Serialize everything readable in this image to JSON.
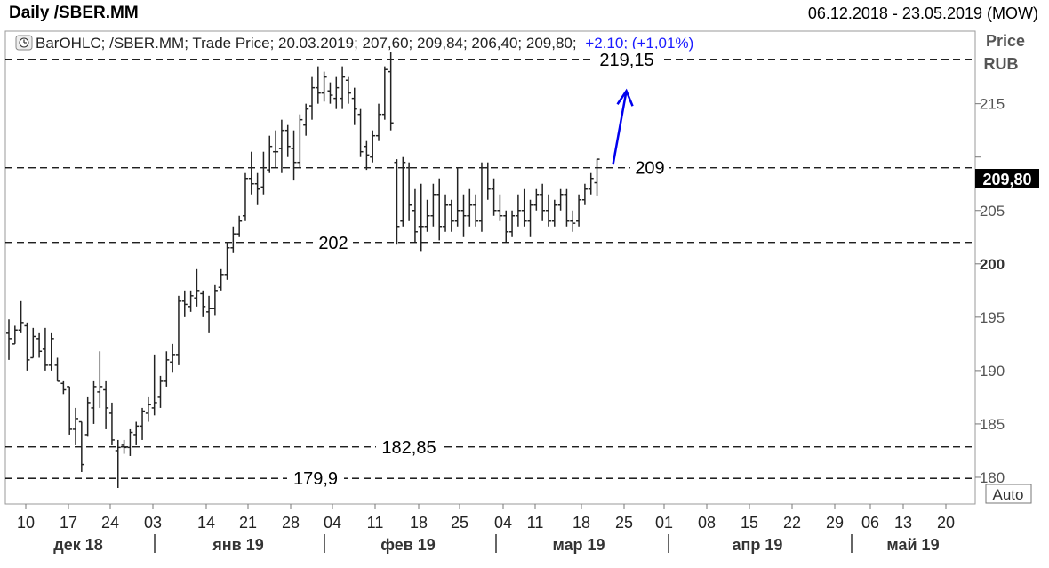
{
  "header": {
    "title": "Daily /SBER.MM",
    "date_range": "06.12.2018 - 23.05.2019 (MOW)"
  },
  "legend": {
    "prefix": "BarOHLC; /SBER.MM; Trade Price; 20.03.2019; 207,60; 209,84; 206,40; 209,80;",
    "change": "+2,10; (+1,01%)"
  },
  "price_axis": {
    "title_line1": "Price",
    "title_line2": "RUB",
    "last_price_label": "209,80",
    "auto_label": "Auto"
  },
  "colors": {
    "bars": "#222222",
    "arrow": "#0000ee",
    "change_text": "#1a1aff",
    "last_price_bg": "#000000"
  },
  "chart_data": {
    "type": "ohlc",
    "ylim": [
      177.5,
      221.8
    ],
    "y_ticks": [
      180,
      185,
      190,
      195,
      200,
      205,
      210,
      215
    ],
    "y_tick_labels": [
      "180",
      "185",
      "190",
      "195",
      "200",
      "205",
      "",
      "215"
    ],
    "x_day_labels": [
      "10",
      "17",
      "24",
      "03",
      "14",
      "21",
      "28",
      "04",
      "11",
      "18",
      "25",
      "04",
      "11",
      "18",
      "25",
      "01",
      "08",
      "15",
      "22",
      "29",
      "06",
      "13",
      "20"
    ],
    "x_month_labels": [
      "дек 18",
      "янв 19",
      "фев 19",
      "мар 19",
      "апр 19",
      "май 19"
    ],
    "levels": [
      {
        "value": 219.15,
        "label": "219,15"
      },
      {
        "value": 209.0,
        "label": "209"
      },
      {
        "value": 202.0,
        "label": "202"
      },
      {
        "value": 182.85,
        "label": "182,85"
      },
      {
        "value": 179.9,
        "label": "179,9"
      }
    ],
    "arrow": {
      "from": 209.3,
      "to": 216.2
    },
    "bars": [
      {
        "o": 193.5,
        "h": 194.8,
        "l": 191.0,
        "c": 193.0
      },
      {
        "o": 192.5,
        "h": 194.2,
        "l": 192.5,
        "c": 193.8
      },
      {
        "o": 193.8,
        "h": 196.5,
        "l": 193.5,
        "c": 194.5
      },
      {
        "o": 194.2,
        "h": 194.5,
        "l": 190.0,
        "c": 191.0
      },
      {
        "o": 191.2,
        "h": 194.0,
        "l": 191.2,
        "c": 193.2
      },
      {
        "o": 193.0,
        "h": 193.5,
        "l": 191.2,
        "c": 191.8
      },
      {
        "o": 192.0,
        "h": 194.0,
        "l": 190.0,
        "c": 190.5
      },
      {
        "o": 190.5,
        "h": 193.5,
        "l": 190.0,
        "c": 193.0
      },
      {
        "o": 190.5,
        "h": 191.2,
        "l": 189.0,
        "c": 189.0
      },
      {
        "o": 188.8,
        "h": 189.0,
        "l": 187.8,
        "c": 188.2
      },
      {
        "o": 188.5,
        "h": 188.5,
        "l": 184.0,
        "c": 184.5
      },
      {
        "o": 184.5,
        "h": 186.5,
        "l": 183.0,
        "c": 185.5
      },
      {
        "o": 185.2,
        "h": 185.2,
        "l": 180.5,
        "c": 181.2
      },
      {
        "o": 184.0,
        "h": 187.5,
        "l": 183.8,
        "c": 187.0
      },
      {
        "o": 186.5,
        "h": 189.0,
        "l": 185.0,
        "c": 188.5
      },
      {
        "o": 188.0,
        "h": 191.8,
        "l": 186.5,
        "c": 188.5
      },
      {
        "o": 188.2,
        "h": 189.0,
        "l": 184.5,
        "c": 186.5
      },
      {
        "o": 186.0,
        "h": 187.0,
        "l": 183.0,
        "c": 183.5
      },
      {
        "o": 182.5,
        "h": 183.5,
        "l": 179.0,
        "c": 182.8
      },
      {
        "o": 183.0,
        "h": 183.5,
        "l": 182.2,
        "c": 182.8
      },
      {
        "o": 182.8,
        "h": 184.5,
        "l": 182.0,
        "c": 184.2
      },
      {
        "o": 184.0,
        "h": 185.2,
        "l": 183.0,
        "c": 184.8
      },
      {
        "o": 184.8,
        "h": 186.5,
        "l": 183.5,
        "c": 186.2
      },
      {
        "o": 186.0,
        "h": 187.5,
        "l": 185.2,
        "c": 186.8
      },
      {
        "o": 186.5,
        "h": 191.5,
        "l": 185.8,
        "c": 187.0
      },
      {
        "o": 187.5,
        "h": 189.5,
        "l": 186.5,
        "c": 189.0
      },
      {
        "o": 189.0,
        "h": 191.8,
        "l": 188.5,
        "c": 191.0
      },
      {
        "o": 190.8,
        "h": 192.5,
        "l": 189.8,
        "c": 191.5
      },
      {
        "o": 191.5,
        "h": 197.0,
        "l": 190.5,
        "c": 196.5
      },
      {
        "o": 196.5,
        "h": 197.5,
        "l": 195.0,
        "c": 196.2
      },
      {
        "o": 196.0,
        "h": 197.5,
        "l": 195.5,
        "c": 197.0
      },
      {
        "o": 196.8,
        "h": 199.5,
        "l": 196.0,
        "c": 197.5
      },
      {
        "o": 197.2,
        "h": 197.5,
        "l": 195.0,
        "c": 196.0
      },
      {
        "o": 195.5,
        "h": 197.0,
        "l": 193.5,
        "c": 195.8
      },
      {
        "o": 195.8,
        "h": 198.0,
        "l": 195.2,
        "c": 197.5
      },
      {
        "o": 197.8,
        "h": 199.5,
        "l": 197.5,
        "c": 199.0
      },
      {
        "o": 199.0,
        "h": 202.0,
        "l": 198.5,
        "c": 201.5
      },
      {
        "o": 201.5,
        "h": 203.5,
        "l": 201.0,
        "c": 202.8
      },
      {
        "o": 202.8,
        "h": 204.5,
        "l": 202.5,
        "c": 204.0
      },
      {
        "o": 204.5,
        "h": 208.5,
        "l": 204.0,
        "c": 208.0
      },
      {
        "o": 208.0,
        "h": 210.5,
        "l": 206.5,
        "c": 207.5
      },
      {
        "o": 207.5,
        "h": 208.5,
        "l": 205.5,
        "c": 207.0
      },
      {
        "o": 207.2,
        "h": 210.5,
        "l": 206.5,
        "c": 209.0
      },
      {
        "o": 208.8,
        "h": 212.0,
        "l": 208.5,
        "c": 211.0
      },
      {
        "o": 210.5,
        "h": 212.5,
        "l": 209.0,
        "c": 210.5
      },
      {
        "o": 210.8,
        "h": 213.5,
        "l": 208.5,
        "c": 212.5
      },
      {
        "o": 212.5,
        "h": 213.0,
        "l": 210.0,
        "c": 211.0
      },
      {
        "o": 210.8,
        "h": 212.5,
        "l": 207.8,
        "c": 209.5
      },
      {
        "o": 209.5,
        "h": 214.0,
        "l": 209.0,
        "c": 213.5
      },
      {
        "o": 213.0,
        "h": 215.0,
        "l": 212.0,
        "c": 214.5
      },
      {
        "o": 214.8,
        "h": 217.5,
        "l": 213.5,
        "c": 216.5
      },
      {
        "o": 216.5,
        "h": 218.5,
        "l": 215.0,
        "c": 216.0
      },
      {
        "o": 216.0,
        "h": 218.0,
        "l": 215.2,
        "c": 217.5
      },
      {
        "o": 216.2,
        "h": 217.0,
        "l": 215.0,
        "c": 215.8
      },
      {
        "o": 215.5,
        "h": 217.5,
        "l": 214.5,
        "c": 216.5
      },
      {
        "o": 215.5,
        "h": 218.5,
        "l": 214.5,
        "c": 217.5
      },
      {
        "o": 217.2,
        "h": 217.5,
        "l": 215.0,
        "c": 216.0
      },
      {
        "o": 215.5,
        "h": 216.5,
        "l": 213.0,
        "c": 214.5
      },
      {
        "o": 214.0,
        "h": 214.5,
        "l": 210.0,
        "c": 210.5
      },
      {
        "o": 211.0,
        "h": 211.5,
        "l": 208.8,
        "c": 210.2
      },
      {
        "o": 210.0,
        "h": 212.5,
        "l": 209.5,
        "c": 212.0
      },
      {
        "o": 212.0,
        "h": 215.0,
        "l": 211.5,
        "c": 214.0
      },
      {
        "o": 214.0,
        "h": 218.5,
        "l": 213.5,
        "c": 218.2
      },
      {
        "o": 218.0,
        "h": 219.8,
        "l": 212.5,
        "c": 213.2
      },
      {
        "o": 209.5,
        "h": 209.8,
        "l": 201.8,
        "c": 203.5
      },
      {
        "o": 204.0,
        "h": 210.0,
        "l": 203.5,
        "c": 209.5
      },
      {
        "o": 209.0,
        "h": 209.5,
        "l": 204.0,
        "c": 205.5
      },
      {
        "o": 205.0,
        "h": 207.0,
        "l": 202.0,
        "c": 203.0
      },
      {
        "o": 203.5,
        "h": 207.5,
        "l": 201.2,
        "c": 203.5
      },
      {
        "o": 203.5,
        "h": 206.0,
        "l": 203.0,
        "c": 204.5
      },
      {
        "o": 204.5,
        "h": 207.5,
        "l": 203.5,
        "c": 206.5
      },
      {
        "o": 206.5,
        "h": 208.0,
        "l": 202.2,
        "c": 203.5
      },
      {
        "o": 203.5,
        "h": 206.5,
        "l": 203.0,
        "c": 205.5
      },
      {
        "o": 205.5,
        "h": 206.0,
        "l": 203.0,
        "c": 204.0
      },
      {
        "o": 204.0,
        "h": 209.0,
        "l": 203.5,
        "c": 205.0
      },
      {
        "o": 205.0,
        "h": 206.5,
        "l": 202.5,
        "c": 204.5
      },
      {
        "o": 204.5,
        "h": 207.0,
        "l": 203.5,
        "c": 205.5
      },
      {
        "o": 205.5,
        "h": 206.5,
        "l": 203.5,
        "c": 204.0
      },
      {
        "o": 204.0,
        "h": 209.5,
        "l": 203.0,
        "c": 209.0
      },
      {
        "o": 209.0,
        "h": 209.5,
        "l": 206.0,
        "c": 207.0
      },
      {
        "o": 207.0,
        "h": 208.0,
        "l": 204.5,
        "c": 205.0
      },
      {
        "o": 205.0,
        "h": 206.5,
        "l": 204.0,
        "c": 204.5
      },
      {
        "o": 204.5,
        "h": 205.0,
        "l": 202.0,
        "c": 203.0
      },
      {
        "o": 203.0,
        "h": 205.0,
        "l": 202.5,
        "c": 204.5
      },
      {
        "o": 204.5,
        "h": 206.5,
        "l": 203.5,
        "c": 205.0
      },
      {
        "o": 205.0,
        "h": 207.0,
        "l": 203.5,
        "c": 204.0
      },
      {
        "o": 204.0,
        "h": 206.0,
        "l": 202.5,
        "c": 205.5
      },
      {
        "o": 205.5,
        "h": 207.0,
        "l": 205.0,
        "c": 206.5
      },
      {
        "o": 206.5,
        "h": 207.5,
        "l": 204.0,
        "c": 205.0
      },
      {
        "o": 205.0,
        "h": 206.5,
        "l": 203.5,
        "c": 204.0
      },
      {
        "o": 204.0,
        "h": 206.0,
        "l": 203.5,
        "c": 205.5
      },
      {
        "o": 205.5,
        "h": 207.0,
        "l": 205.0,
        "c": 206.5
      },
      {
        "o": 206.5,
        "h": 207.0,
        "l": 203.5,
        "c": 204.0
      },
      {
        "o": 204.0,
        "h": 205.0,
        "l": 203.0,
        "c": 203.8
      },
      {
        "o": 204.0,
        "h": 206.5,
        "l": 203.5,
        "c": 206.0
      },
      {
        "o": 206.0,
        "h": 207.5,
        "l": 205.5,
        "c": 207.0
      },
      {
        "o": 207.0,
        "h": 208.5,
        "l": 206.5,
        "c": 208.0
      },
      {
        "o": 207.6,
        "h": 209.84,
        "l": 206.4,
        "c": 209.8
      }
    ]
  }
}
